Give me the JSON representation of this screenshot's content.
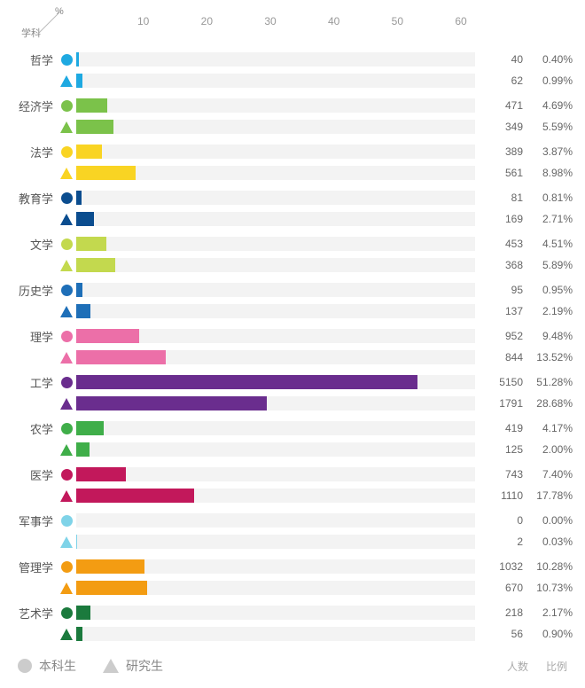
{
  "axis": {
    "unit_symbol": "%",
    "subject_label": "学科",
    "xmin": 0,
    "xmax": 60,
    "ticks": [
      10,
      20,
      30,
      40,
      50,
      60
    ]
  },
  "legend": {
    "undergrad": "本科生",
    "grad": "研究生",
    "marker_color": "#cccccc"
  },
  "column_headers": {
    "count": "人数",
    "ratio": "比例"
  },
  "track_bg": "#f3f3f3",
  "categories": [
    {
      "label": "哲学",
      "color": "#1ea9e1",
      "undergrad": {
        "count": 40,
        "pct_label": "0.40%",
        "pct": 0.4
      },
      "grad": {
        "count": 62,
        "pct_label": "0.99%",
        "pct": 0.99
      }
    },
    {
      "label": "经济学",
      "color": "#7bc24a",
      "undergrad": {
        "count": 471,
        "pct_label": "4.69%",
        "pct": 4.69
      },
      "grad": {
        "count": 349,
        "pct_label": "5.59%",
        "pct": 5.59
      }
    },
    {
      "label": "法学",
      "color": "#f9d423",
      "undergrad": {
        "count": 389,
        "pct_label": "3.87%",
        "pct": 3.87
      },
      "grad": {
        "count": 561,
        "pct_label": "8.98%",
        "pct": 8.98
      }
    },
    {
      "label": "教育学",
      "color": "#0b4d8f",
      "undergrad": {
        "count": 81,
        "pct_label": "0.81%",
        "pct": 0.81
      },
      "grad": {
        "count": 169,
        "pct_label": "2.71%",
        "pct": 2.71
      }
    },
    {
      "label": "文学",
      "color": "#c3d94e",
      "undergrad": {
        "count": 453,
        "pct_label": "4.51%",
        "pct": 4.51
      },
      "grad": {
        "count": 368,
        "pct_label": "5.89%",
        "pct": 5.89
      }
    },
    {
      "label": "历史学",
      "color": "#1e6fb8",
      "undergrad": {
        "count": 95,
        "pct_label": "0.95%",
        "pct": 0.95
      },
      "grad": {
        "count": 137,
        "pct_label": "2.19%",
        "pct": 2.19
      }
    },
    {
      "label": "理学",
      "color": "#ec6fa8",
      "undergrad": {
        "count": 952,
        "pct_label": "9.48%",
        "pct": 9.48
      },
      "grad": {
        "count": 844,
        "pct_label": "13.52%",
        "pct": 13.52
      }
    },
    {
      "label": "工学",
      "color": "#6a2d8e",
      "undergrad": {
        "count": 5150,
        "pct_label": "51.28%",
        "pct": 51.28
      },
      "grad": {
        "count": 1791,
        "pct_label": "28.68%",
        "pct": 28.68
      }
    },
    {
      "label": "农学",
      "color": "#3fae49",
      "undergrad": {
        "count": 419,
        "pct_label": "4.17%",
        "pct": 4.17
      },
      "grad": {
        "count": 125,
        "pct_label": "2.00%",
        "pct": 2.0
      }
    },
    {
      "label": "医学",
      "color": "#c2185b",
      "undergrad": {
        "count": 743,
        "pct_label": "7.40%",
        "pct": 7.4
      },
      "grad": {
        "count": 1110,
        "pct_label": "17.78%",
        "pct": 17.78
      }
    },
    {
      "label": "军事学",
      "color": "#7fd3e8",
      "undergrad": {
        "count": 0,
        "pct_label": "0.00%",
        "pct": 0.0
      },
      "grad": {
        "count": 2,
        "pct_label": "0.03%",
        "pct": 0.03
      }
    },
    {
      "label": "管理学",
      "color": "#f39c12",
      "undergrad": {
        "count": 1032,
        "pct_label": "10.28%",
        "pct": 10.28
      },
      "grad": {
        "count": 670,
        "pct_label": "10.73%",
        "pct": 10.73
      }
    },
    {
      "label": "艺术学",
      "color": "#1b7a3d",
      "undergrad": {
        "count": 218,
        "pct_label": "2.17%",
        "pct": 2.17
      },
      "grad": {
        "count": 56,
        "pct_label": "0.90%",
        "pct": 0.9
      }
    }
  ]
}
